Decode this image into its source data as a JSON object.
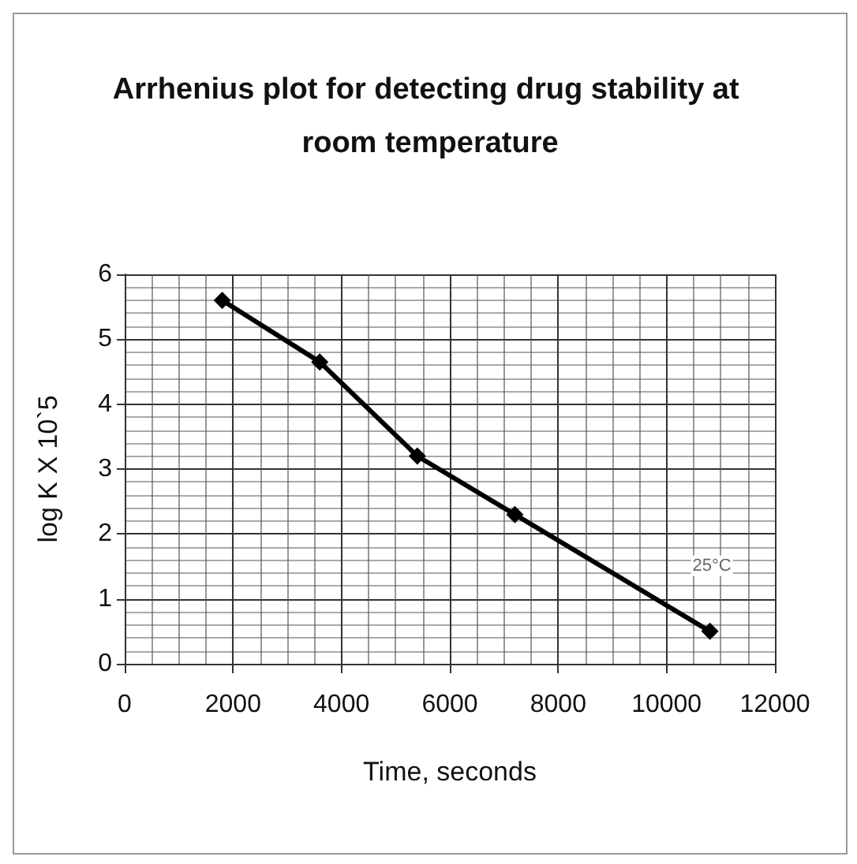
{
  "chart_data": {
    "type": "line",
    "title": "Arrhenius plot for detecting drug stability at room temperature",
    "xlabel": "Time, seconds",
    "ylabel": "log K X 10`5",
    "x": [
      1800,
      3600,
      5400,
      7200,
      10800
    ],
    "series": [
      {
        "color": "#000000",
        "values": [
          5.6,
          4.65,
          3.2,
          2.3,
          0.5
        ]
      }
    ],
    "xlim": [
      0,
      12000
    ],
    "xticks": [
      0,
      2000,
      4000,
      6000,
      8000,
      10000,
      12000
    ],
    "ylim": [
      0,
      6
    ],
    "yticks": [
      0,
      1,
      2,
      3,
      4,
      5,
      6
    ],
    "grid": true,
    "marker": "diamond",
    "line_style": "solid",
    "annotations": [
      "25°C"
    ]
  }
}
